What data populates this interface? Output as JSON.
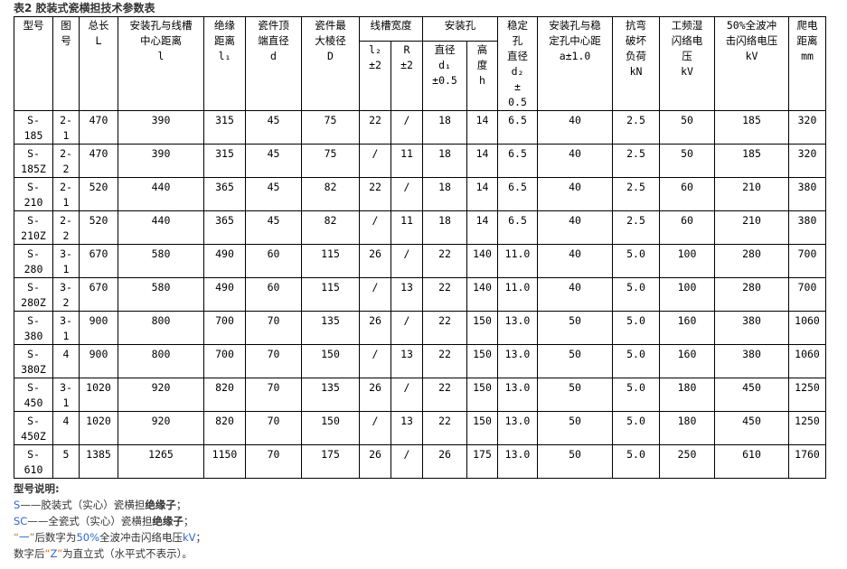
{
  "title": "表2 胶装式瓷横担技术参数表",
  "table": {
    "header_row1": [
      {
        "text": "型号",
        "rowspan": 2
      },
      {
        "text": "图\n号",
        "rowspan": 2
      },
      {
        "text": "总长\nL",
        "rowspan": 2
      },
      {
        "text": "安装孔与线槽\n中心距离\nl",
        "rowspan": 2
      },
      {
        "text": "绝缘\n距离\nl₁",
        "rowspan": 2
      },
      {
        "text": "瓷件顶\n端直径\nd",
        "rowspan": 2
      },
      {
        "text": "瓷件最\n大棱径\nD",
        "rowspan": 2
      },
      {
        "text": "线槽宽度",
        "colspan": 2
      },
      {
        "text": "安装孔",
        "colspan": 2
      },
      {
        "text": "稳定\n孔\n直径\nd₂\n±\n0.5",
        "rowspan": 2
      },
      {
        "text": "安装孔与稳\n定孔中心距\na±1.0",
        "rowspan": 2
      },
      {
        "text": "抗弯\n破坏\n负荷\nkN",
        "rowspan": 2
      },
      {
        "text": "工频湿\n闪络电\n压\nkV",
        "rowspan": 2
      },
      {
        "text": "50%全波冲\n击闪络电压\nkV",
        "rowspan": 2
      },
      {
        "text": "爬电\n距离\nmm",
        "rowspan": 2
      }
    ],
    "header_row2": [
      "l₂\n±2",
      "R\n±2",
      "直径\nd₁\n±0.5",
      "高\n度\nh"
    ],
    "rows": [
      [
        "S-\n185",
        "2-\n1",
        "470",
        "390",
        "315",
        "45",
        "75",
        "22",
        "/",
        "18",
        "14",
        "6.5",
        "40",
        "2.5",
        "50",
        "185",
        "320"
      ],
      [
        "S-\n185Z",
        "2-\n2",
        "470",
        "390",
        "315",
        "45",
        "75",
        "/",
        "11",
        "18",
        "14",
        "6.5",
        "40",
        "2.5",
        "50",
        "185",
        "320"
      ],
      [
        "S-\n210",
        "2-\n1",
        "520",
        "440",
        "365",
        "45",
        "82",
        "22",
        "/",
        "18",
        "14",
        "6.5",
        "40",
        "2.5",
        "60",
        "210",
        "380"
      ],
      [
        "S-\n210Z",
        "2-\n2",
        "520",
        "440",
        "365",
        "45",
        "82",
        "/",
        "11",
        "18",
        "14",
        "6.5",
        "40",
        "2.5",
        "60",
        "210",
        "380"
      ],
      [
        "S-\n280",
        "3-\n1",
        "670",
        "580",
        "490",
        "60",
        "115",
        "26",
        "/",
        "22",
        "140",
        "11.0",
        "40",
        "5.0",
        "100",
        "280",
        "700"
      ],
      [
        "S-\n280Z",
        "3-\n2",
        "670",
        "580",
        "490",
        "60",
        "115",
        "/",
        "13",
        "22",
        "140",
        "11.0",
        "40",
        "5.0",
        "100",
        "280",
        "700"
      ],
      [
        "S-\n380",
        "3-\n1",
        "900",
        "800",
        "700",
        "70",
        "135",
        "26",
        "/",
        "22",
        "150",
        "13.0",
        "50",
        "5.0",
        "160",
        "380",
        "1060"
      ],
      [
        "S-\n380Z",
        "4",
        "900",
        "800",
        "700",
        "70",
        "150",
        "/",
        "13",
        "22",
        "150",
        "13.0",
        "50",
        "5.0",
        "160",
        "380",
        "1060"
      ],
      [
        "S-\n450",
        "3-\n1",
        "1020",
        "920",
        "820",
        "70",
        "135",
        "26",
        "/",
        "22",
        "150",
        "13.0",
        "50",
        "5.0",
        "180",
        "450",
        "1250"
      ],
      [
        "S-\n450Z",
        "4",
        "1020",
        "920",
        "820",
        "70",
        "150",
        "/",
        "13",
        "22",
        "150",
        "13.0",
        "50",
        "5.0",
        "180",
        "450",
        "1250"
      ],
      [
        "S-\n610",
        "5",
        "1385",
        "1265",
        "1150",
        "70",
        "175",
        "26",
        "/",
        "26",
        "175",
        "13.0",
        "50",
        "5.0",
        "250",
        "610",
        "1760"
      ]
    ]
  },
  "notes": {
    "heading": "型号说明:",
    "line1": {
      "code": "S",
      "dash": "——",
      "text": "胶装式（实心）瓷横担",
      "bold": "绝缘子",
      "end": "；"
    },
    "line2": {
      "code": "SC",
      "dash": "——",
      "text": "全瓷式（实心）瓷横担",
      "bold": "绝缘子",
      "end": "；"
    },
    "line3": {
      "q1": "“",
      "mark": "一",
      "q2": "”",
      "text1": "后数字为",
      "pct": "50%",
      "text2": "全波冲击闪络电压",
      "unit": "kV",
      "end": "；"
    },
    "line4": {
      "text1": "数字后",
      "q1": "“",
      "mark": "Z",
      "q2": "”",
      "text2": "为直立式（水平式不表示）。"
    }
  },
  "colors": {
    "accent_blue": "#3366cc",
    "quote_orange": "#e07020",
    "text": "#333333"
  }
}
